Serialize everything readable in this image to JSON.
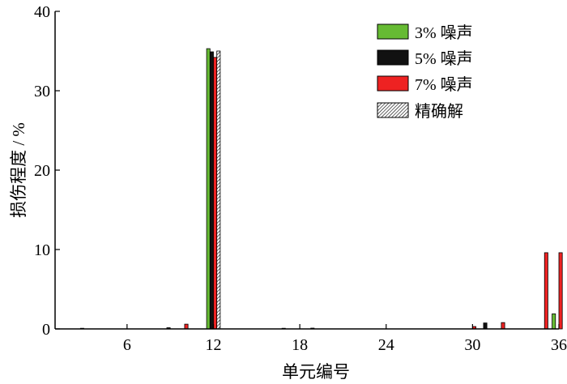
{
  "chart_data": {
    "type": "bar",
    "xlabel": "单元编号",
    "ylabel": "损伤程度 / %",
    "xlim": [
      1,
      36
    ],
    "ylim": [
      0,
      40
    ],
    "x_ticks": [
      6,
      12,
      18,
      24,
      30,
      36
    ],
    "y_ticks": [
      0,
      10,
      20,
      30,
      40
    ],
    "grid": false,
    "legend": {
      "position": "top-right"
    },
    "series": [
      {
        "name": "3% 噪声",
        "color": "#66bb33",
        "pattern": "solid",
        "points": [
          {
            "x": 12,
            "y": 35.3
          },
          {
            "x": 36,
            "y": 1.9
          }
        ]
      },
      {
        "name": "5% 噪声",
        "color": "#111111",
        "pattern": "solid",
        "points": [
          {
            "x": 3,
            "y": 0.05
          },
          {
            "x": 9,
            "y": 0.15
          },
          {
            "x": 12,
            "y": 34.9
          },
          {
            "x": 17,
            "y": 0.05
          },
          {
            "x": 19,
            "y": 0.1
          },
          {
            "x": 31,
            "y": 0.75
          }
        ]
      },
      {
        "name": "7% 噪声",
        "color": "#ee2222",
        "pattern": "solid",
        "points": [
          {
            "x": 10,
            "y": 0.6
          },
          {
            "x": 12,
            "y": 34.2
          },
          {
            "x": 30,
            "y": 0.3
          },
          {
            "x": 32,
            "y": 0.8
          },
          {
            "x": 35,
            "y": 9.6
          },
          {
            "x": 36,
            "y": 9.6
          }
        ]
      },
      {
        "name": "精确解",
        "color": "#ffffff",
        "pattern": "hatch",
        "points": [
          {
            "x": 12,
            "y": 35.0
          }
        ]
      }
    ]
  }
}
